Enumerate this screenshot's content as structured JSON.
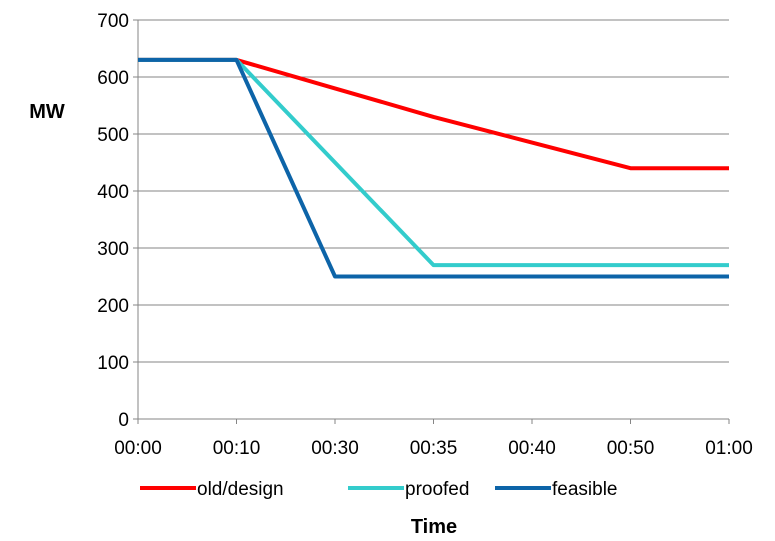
{
  "chart_data": {
    "type": "line",
    "title": "",
    "xlabel": "Time",
    "ylabel": "MW",
    "categories": [
      "00:00",
      "00:10",
      "00:30",
      "00:35",
      "00:40",
      "00:50",
      "01:00"
    ],
    "ylim": [
      0,
      700
    ],
    "yticks": [
      0,
      100,
      200,
      300,
      400,
      500,
      600,
      700
    ],
    "ytick_labels": [
      "0",
      "100",
      "200",
      "300",
      "400",
      "500",
      "600",
      "700"
    ],
    "grid": "horizontal",
    "legend_position": "bottom",
    "series": [
      {
        "name": "old/design",
        "color": "#ff0000",
        "values": [
          630,
          630,
          580,
          530,
          485,
          440,
          440
        ]
      },
      {
        "name": "proofed",
        "color": "#33cccc",
        "values": [
          630,
          630,
          450,
          270,
          270,
          270,
          270
        ]
      },
      {
        "name": "feasible",
        "color": "#0d64a8",
        "values": [
          630,
          630,
          250,
          250,
          250,
          250,
          250
        ]
      }
    ]
  }
}
